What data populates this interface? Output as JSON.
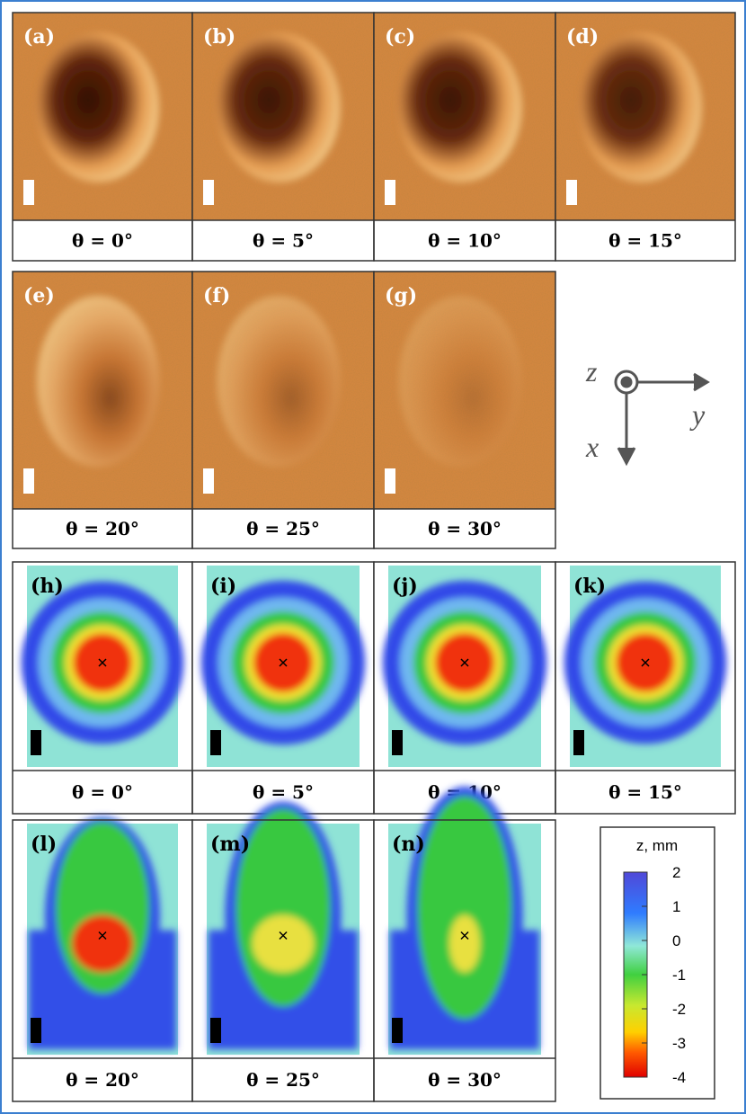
{
  "photos": [
    {
      "label": "(a)",
      "caption": "θ = 0°"
    },
    {
      "label": "(b)",
      "caption": "θ = 5°"
    },
    {
      "label": "(c)",
      "caption": "θ = 10°"
    },
    {
      "label": "(d)",
      "caption": "θ = 15°"
    },
    {
      "label": "(e)",
      "caption": "θ = 20°"
    },
    {
      "label": "(f)",
      "caption": "θ = 25°"
    },
    {
      "label": "(g)",
      "caption": "θ = 30°"
    }
  ],
  "height_maps": [
    {
      "label": "(h)",
      "caption": "θ = 0°"
    },
    {
      "label": "(i)",
      "caption": "θ = 5°"
    },
    {
      "label": "(j)",
      "caption": "θ = 10°"
    },
    {
      "label": "(k)",
      "caption": "θ = 15°"
    },
    {
      "label": "(l)",
      "caption": "θ = 20°"
    },
    {
      "label": "(m)",
      "caption": "θ = 25°"
    },
    {
      "label": "(n)",
      "caption": "θ = 30°"
    }
  ],
  "axes": {
    "z": "z",
    "y": "y",
    "x": "x"
  },
  "colorbar": {
    "title": "z, mm",
    "lim": [
      -4,
      2
    ],
    "ticks": [
      2,
      1,
      0,
      -1,
      -2,
      -3,
      -4
    ]
  }
}
